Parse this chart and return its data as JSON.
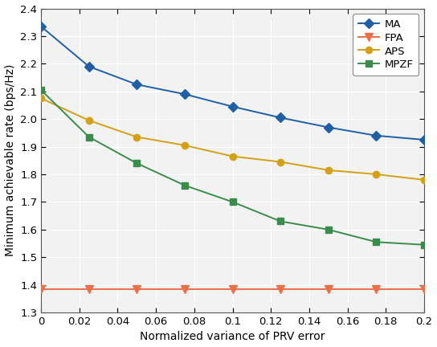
{
  "x": [
    0,
    0.025,
    0.05,
    0.075,
    0.1,
    0.125,
    0.15,
    0.175,
    0.2
  ],
  "MA": [
    2.335,
    2.19,
    2.125,
    2.09,
    2.045,
    2.005,
    1.97,
    1.94,
    1.925
  ],
  "FPA": [
    1.385,
    1.385,
    1.385,
    1.385,
    1.385,
    1.385,
    1.385,
    1.385,
    1.385
  ],
  "APS": [
    2.075,
    1.995,
    1.935,
    1.905,
    1.865,
    1.845,
    1.815,
    1.8,
    1.78
  ],
  "MPZF": [
    2.105,
    1.935,
    1.84,
    1.76,
    1.7,
    1.63,
    1.6,
    1.555,
    1.545
  ],
  "MA_color": "#1f5fa6",
  "FPA_color": "#e8704a",
  "APS_color": "#d4a017",
  "MPZF_color": "#3a8c4a",
  "xlabel": "Normalized variance of PRV error",
  "ylabel": "Minimum achievable rate (bps/Hz)",
  "xlim": [
    0,
    0.2
  ],
  "ylim": [
    1.3,
    2.4
  ],
  "xticks": [
    0,
    0.02,
    0.04,
    0.06,
    0.08,
    0.1,
    0.12,
    0.14,
    0.16,
    0.18,
    0.2
  ],
  "yticks": [
    1.3,
    1.4,
    1.5,
    1.6,
    1.7,
    1.8,
    1.9,
    2.0,
    2.1,
    2.2,
    2.3,
    2.4
  ],
  "bg_color": "#f2f2f2",
  "grid_color": "#ffffff",
  "legend_labels": [
    "MA",
    "FPA",
    "APS",
    "MPZF"
  ]
}
